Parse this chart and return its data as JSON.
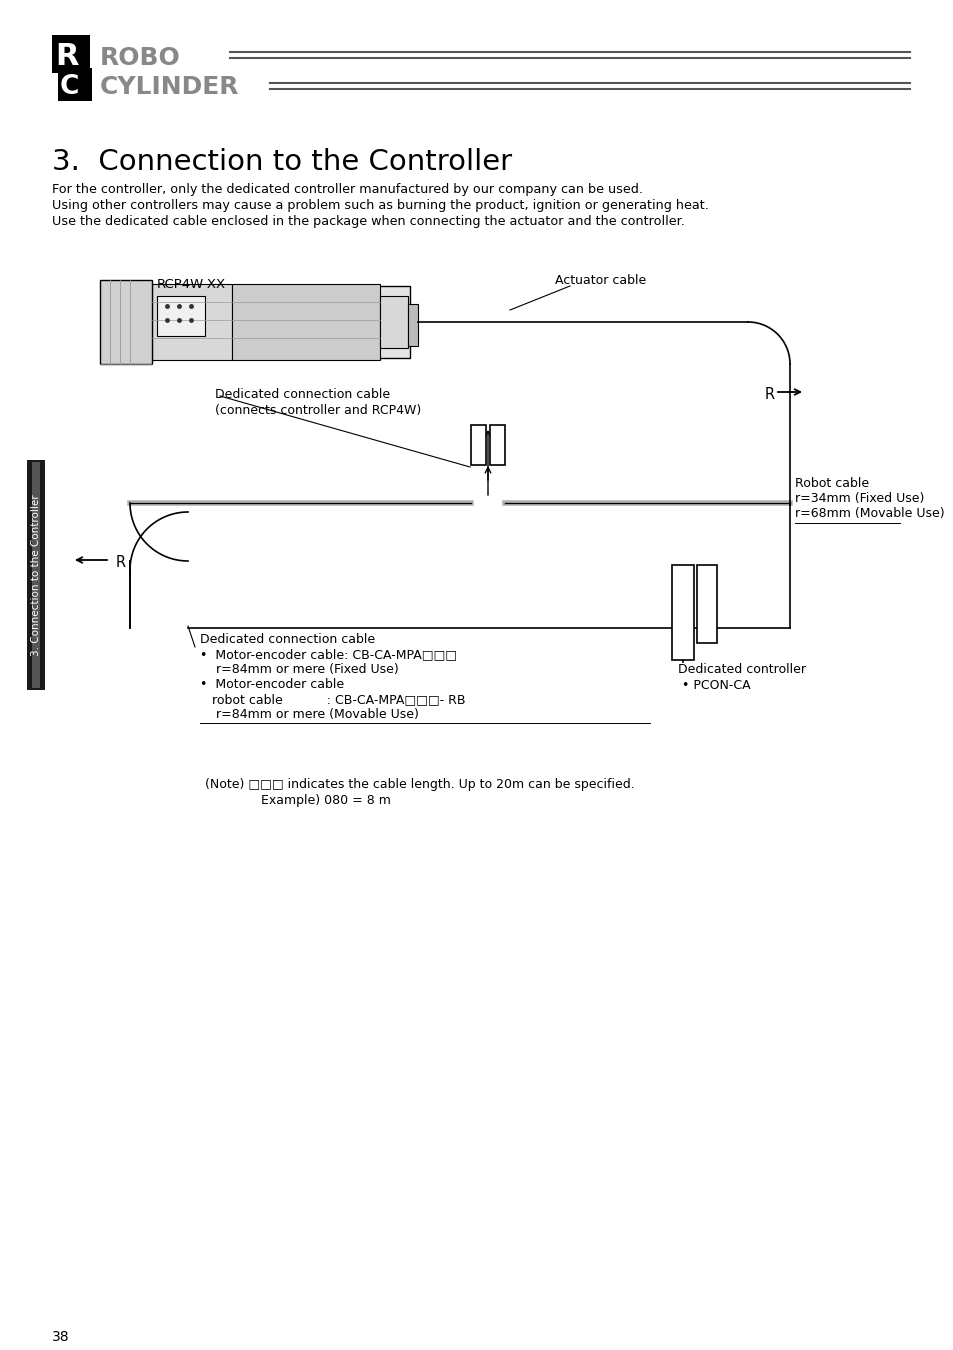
{
  "bg_color": "#ffffff",
  "title_section": "3.  Connection to the Controller",
  "body_text_1": "For the controller, only the dedicated controller manufactured by our company can be used.",
  "body_text_2": "Using other controllers may cause a problem such as burning the product, ignition or generating heat.",
  "body_text_3": "Use the dedicated cable enclosed in the package when connecting the actuator and the controller.",
  "label_rcpw": "RCP4W-XX",
  "label_actuator_cable": "Actuator cable",
  "label_ded_top_1": "Dedicated connection cable",
  "label_ded_top_2": "(connects controller and RCP4W)",
  "label_R_right": "R",
  "label_robot_cable_1": "Robot cable",
  "label_robot_cable_2": "r=34mm (Fixed Use)",
  "label_robot_cable_3": "r=68mm (Movable Use)",
  "label_R_left": "R",
  "label_ded_bot_0": "Dedicated connection cable",
  "label_ded_bot_1": "•  Motor-encoder cable: CB-CA-MPA□□□",
  "label_ded_bot_2": "    r=84mm or mere (Fixed Use)",
  "label_ded_bot_3": "•  Motor-encoder cable",
  "label_ded_bot_4": "   robot cable           : CB-CA-MPA□□□- RB",
  "label_ded_bot_5": "    r=84mm or mere (Movable Use)",
  "label_ded_ctrl_1": "Dedicated controller",
  "label_ded_ctrl_2": " • PCON-CA",
  "label_note_1": "(Note) □□□ indicates the cable length. Up to 20m can be specified.",
  "label_note_2": "              Example) 080 = 8 m",
  "page_number": "38",
  "side_label": "3. Connection to the Controller",
  "logo_r_text": "ROBO",
  "logo_c_text": "CYLINDER"
}
